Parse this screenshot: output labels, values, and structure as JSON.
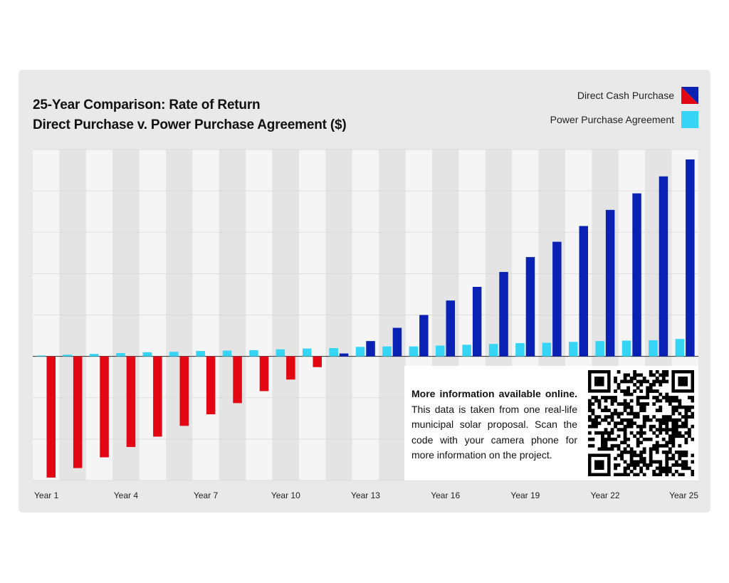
{
  "title_line1": "25-Year Comparison: Rate of Return",
  "title_line2": "Direct Purchase v. Power Purchase Agreement ($)",
  "legend": {
    "direct_label": "Direct Cash Purchase",
    "ppa_label": "Power Purchase Agreement"
  },
  "info": {
    "heading": "More information available online.",
    "body": "This data is taken from one real-life municipal solar proposal. Scan the code with your camera phone for more information on the project."
  },
  "qr_icon": "qr-code-icon",
  "colors": {
    "card": "#e9e9e9",
    "band_light": "#f5f5f5",
    "band_dark": "#e4e4e4",
    "negative": "#e30613",
    "positive": "#0a22b4",
    "ppa": "#36d4f5"
  },
  "chart_data": {
    "type": "bar",
    "title": "25-Year Comparison: Rate of Return Direct Purchase v. Power Purchase Agreement ($)",
    "xlabel": "",
    "ylabel": "",
    "grid": true,
    "legend_position": "top-right",
    "categories": [
      "Year 1",
      "Year 2",
      "Year 3",
      "Year 4",
      "Year 5",
      "Year 6",
      "Year 7",
      "Year 8",
      "Year 9",
      "Year 10",
      "Year 11",
      "Year 12",
      "Year 13",
      "Year 14",
      "Year 15",
      "Year 16",
      "Year 17",
      "Year 18",
      "Year 19",
      "Year 20",
      "Year 21",
      "Year 22",
      "Year 23",
      "Year 24",
      "Year 25"
    ],
    "tick_labels": [
      "Year 1",
      "Year 4",
      "Year 7",
      "Year 10",
      "Year 13",
      "Year 16",
      "Year 19",
      "Year 22",
      "Year 25"
    ],
    "ylim": [
      -3,
      5
    ],
    "series": [
      {
        "name": "Power Purchase Agreement",
        "values": [
          0.02,
          0.04,
          0.06,
          0.08,
          0.1,
          0.11,
          0.13,
          0.14,
          0.15,
          0.17,
          0.19,
          0.2,
          0.23,
          0.24,
          0.24,
          0.26,
          0.28,
          0.3,
          0.32,
          0.33,
          0.35,
          0.37,
          0.38,
          0.39,
          0.42
        ]
      },
      {
        "name": "Direct Cash Purchase",
        "values": [
          -2.93,
          -2.7,
          -2.44,
          -2.19,
          -1.94,
          -1.68,
          -1.4,
          -1.13,
          -0.84,
          -0.56,
          -0.26,
          0.07,
          0.37,
          0.69,
          1.0,
          1.35,
          1.68,
          2.04,
          2.4,
          2.77,
          3.15,
          3.54,
          3.94,
          4.35,
          4.76
        ]
      }
    ]
  }
}
